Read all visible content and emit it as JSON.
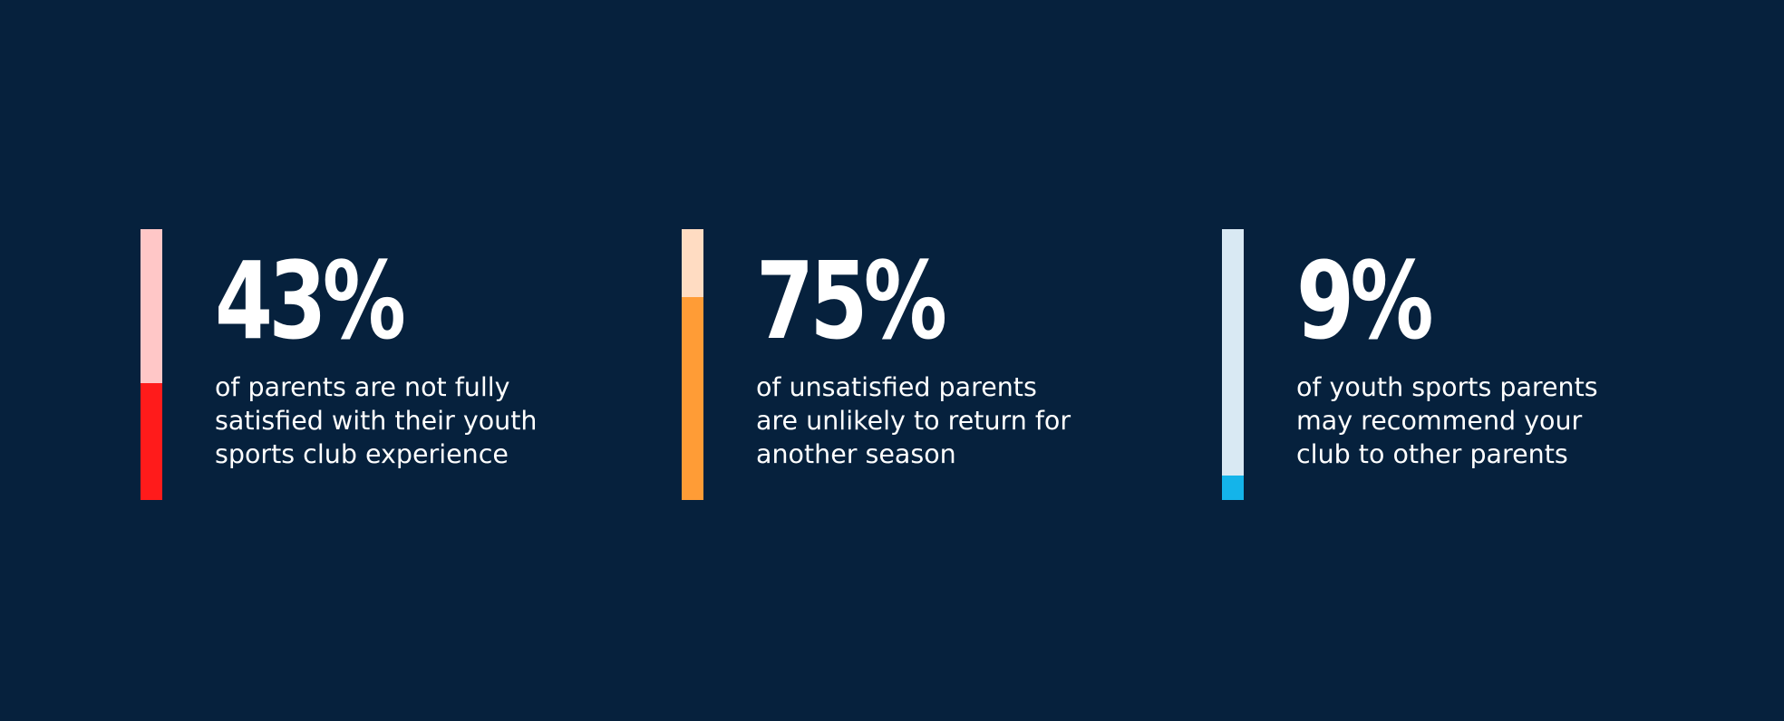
{
  "stats": [
    {
      "value": "43%",
      "fraction": 0.43,
      "lines": [
        "of parents are not fully",
        "satisfied with their youth",
        "sports club experience"
      ],
      "track_color": "#ffc7c7",
      "fill_color": "#ff1b1b"
    },
    {
      "value": "75%",
      "fraction": 0.75,
      "lines": [
        "of unsatisfied parents",
        "are unlikely to return for",
        "another season"
      ],
      "track_color": "#ffdcc2",
      "fill_color": "#ff9c36"
    },
    {
      "value": "9%",
      "fraction": 0.09,
      "lines": [
        "of youth sports parents",
        "may recommend your",
        "club to other parents"
      ],
      "track_color": "#d9e9f3",
      "fill_color": "#14b4ea"
    }
  ],
  "colors": {
    "background": "#06213d",
    "text": "#ffffff"
  }
}
